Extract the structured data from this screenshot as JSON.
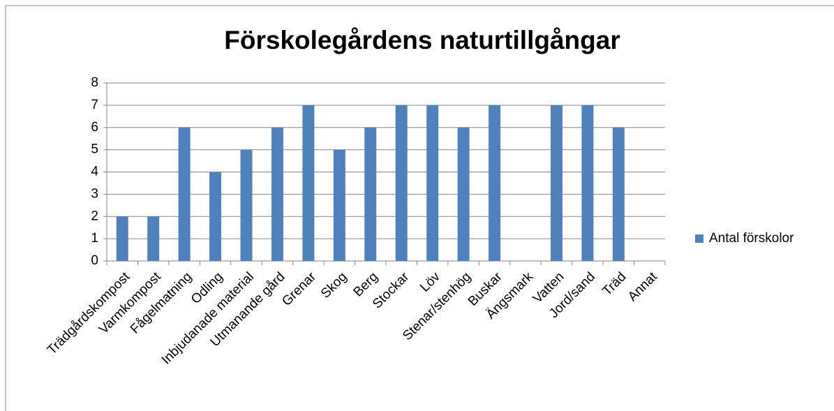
{
  "chart_data": {
    "type": "bar",
    "title": "Förskolegårdens naturtillgångar",
    "categories": [
      "Trädgårdskompost",
      "Varmkompost",
      "Fågelmatning",
      "Odling",
      "Inbjudanade material",
      "Utmanande gård",
      "Grenar",
      "Skog",
      "Berg",
      "Stockar",
      "Löv",
      "Stenar/stenhög",
      "Buskar",
      "Ängsmark",
      "Vatten",
      "Jord/sand",
      "Träd",
      "Annat"
    ],
    "series": [
      {
        "name": "Antal förskolor",
        "color": "#4f81bd",
        "values": [
          2,
          2,
          6,
          4,
          5,
          6,
          7,
          5,
          6,
          7,
          7,
          6,
          7,
          0,
          7,
          7,
          6,
          0
        ]
      }
    ],
    "ylim": [
      0,
      8
    ],
    "yticks": [
      0,
      1,
      2,
      3,
      4,
      5,
      6,
      7,
      8
    ],
    "grid": true,
    "legend": "right"
  }
}
